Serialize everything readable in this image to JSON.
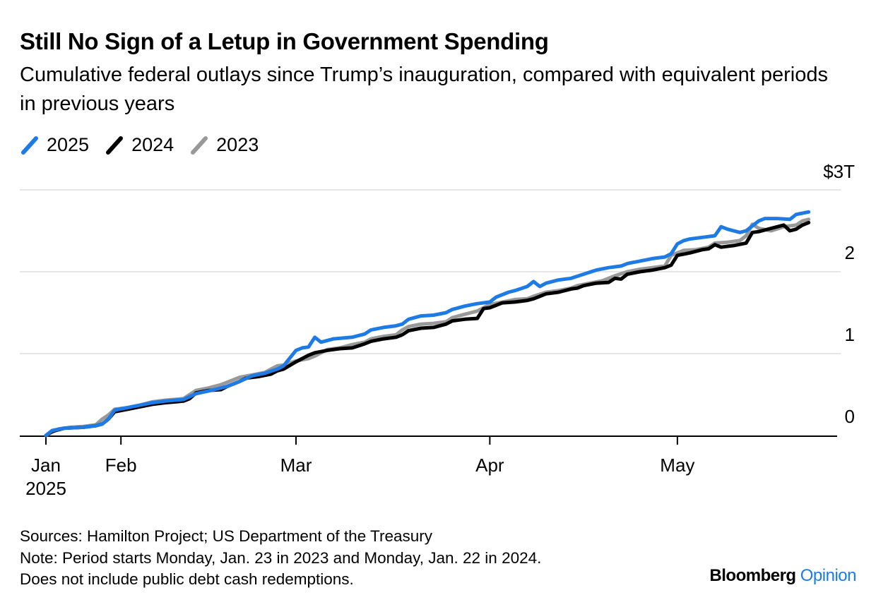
{
  "header": {
    "title": "Still No Sign of a Letup in Government Spending",
    "subtitle": "Cumulative federal outlays since Trump’s inauguration, compared with equivalent periods in previous years"
  },
  "chart_data": {
    "type": "line",
    "title": "Still No Sign of a Letup in Government Spending",
    "subtitle": "Cumulative federal outlays since Trump’s inauguration, compared with equivalent periods in previous years",
    "x_unit": "days since period start (Jan 20, 2025)",
    "xlim": [
      -1,
      126
    ],
    "ylim": [
      0,
      3
    ],
    "y_unit": "$ trillions",
    "y_ticks": [
      0,
      1,
      2,
      3
    ],
    "y_tick_labels": [
      "0",
      "1",
      "2",
      "$3T"
    ],
    "x_ticks": [
      {
        "day": 0,
        "label": "Jan",
        "sublabel": "2025"
      },
      {
        "day": 12,
        "label": "Feb",
        "sublabel": ""
      },
      {
        "day": 40,
        "label": "Mar",
        "sublabel": ""
      },
      {
        "day": 71,
        "label": "Apr",
        "sublabel": ""
      },
      {
        "day": 101,
        "label": "May",
        "sublabel": ""
      }
    ],
    "grid": true,
    "legend_position": "top-left",
    "series": [
      {
        "name": "2025",
        "color": "#1e7be6",
        "points": [
          [
            0,
            0
          ],
          [
            1,
            0.06
          ],
          [
            3,
            0.09
          ],
          [
            6,
            0.1
          ],
          [
            8,
            0.12
          ],
          [
            9,
            0.14
          ],
          [
            10,
            0.2
          ],
          [
            11,
            0.31
          ],
          [
            13,
            0.34
          ],
          [
            15,
            0.37
          ],
          [
            17,
            0.4
          ],
          [
            19,
            0.42
          ],
          [
            22,
            0.44
          ],
          [
            24,
            0.51
          ],
          [
            27,
            0.56
          ],
          [
            29,
            0.6
          ],
          [
            31,
            0.66
          ],
          [
            33,
            0.73
          ],
          [
            35,
            0.76
          ],
          [
            37,
            0.81
          ],
          [
            38,
            0.85
          ],
          [
            40,
            1.04
          ],
          [
            41,
            1.07
          ],
          [
            42,
            1.08
          ],
          [
            43,
            1.2
          ],
          [
            44,
            1.14
          ],
          [
            46,
            1.18
          ],
          [
            49,
            1.2
          ],
          [
            51,
            1.24
          ],
          [
            52,
            1.29
          ],
          [
            54,
            1.32
          ],
          [
            56,
            1.34
          ],
          [
            57,
            1.36
          ],
          [
            58,
            1.42
          ],
          [
            60,
            1.46
          ],
          [
            62,
            1.47
          ],
          [
            64,
            1.5
          ],
          [
            65,
            1.54
          ],
          [
            67,
            1.58
          ],
          [
            69,
            1.61
          ],
          [
            71,
            1.63
          ],
          [
            72,
            1.69
          ],
          [
            74,
            1.75
          ],
          [
            75,
            1.77
          ],
          [
            77,
            1.82
          ],
          [
            78,
            1.88
          ],
          [
            79,
            1.82
          ],
          [
            80,
            1.86
          ],
          [
            82,
            1.9
          ],
          [
            84,
            1.92
          ],
          [
            86,
            1.97
          ],
          [
            88,
            2.02
          ],
          [
            90,
            2.05
          ],
          [
            92,
            2.07
          ],
          [
            93,
            2.1
          ],
          [
            95,
            2.13
          ],
          [
            97,
            2.16
          ],
          [
            99,
            2.18
          ],
          [
            100,
            2.22
          ],
          [
            101,
            2.34
          ],
          [
            102,
            2.38
          ],
          [
            103,
            2.4
          ],
          [
            105,
            2.42
          ],
          [
            107,
            2.44
          ],
          [
            108,
            2.55
          ],
          [
            109,
            2.52
          ],
          [
            111,
            2.48
          ],
          [
            112,
            2.5
          ],
          [
            114,
            2.62
          ],
          [
            115,
            2.65
          ],
          [
            117,
            2.65
          ],
          [
            119,
            2.64
          ],
          [
            120,
            2.7
          ],
          [
            122,
            2.73
          ]
        ]
      },
      {
        "name": "2024",
        "color": "#000000",
        "points": [
          [
            0,
            0
          ],
          [
            1,
            0.05
          ],
          [
            3,
            0.09
          ],
          [
            6,
            0.1
          ],
          [
            8,
            0.12
          ],
          [
            9,
            0.14
          ],
          [
            10,
            0.2
          ],
          [
            11,
            0.29
          ],
          [
            13,
            0.32
          ],
          [
            15,
            0.35
          ],
          [
            17,
            0.38
          ],
          [
            19,
            0.4
          ],
          [
            22,
            0.42
          ],
          [
            23,
            0.45
          ],
          [
            24,
            0.52
          ],
          [
            26,
            0.55
          ],
          [
            28,
            0.56
          ],
          [
            29,
            0.6
          ],
          [
            31,
            0.66
          ],
          [
            32,
            0.7
          ],
          [
            34,
            0.72
          ],
          [
            36,
            0.75
          ],
          [
            37,
            0.79
          ],
          [
            38,
            0.81
          ],
          [
            40,
            0.9
          ],
          [
            42,
            0.98
          ],
          [
            43,
            1.01
          ],
          [
            45,
            1.04
          ],
          [
            47,
            1.06
          ],
          [
            49,
            1.07
          ],
          [
            51,
            1.12
          ],
          [
            52,
            1.15
          ],
          [
            54,
            1.18
          ],
          [
            56,
            1.2
          ],
          [
            57,
            1.23
          ],
          [
            58,
            1.28
          ],
          [
            60,
            1.31
          ],
          [
            62,
            1.32
          ],
          [
            64,
            1.36
          ],
          [
            65,
            1.4
          ],
          [
            67,
            1.42
          ],
          [
            69,
            1.43
          ],
          [
            70,
            1.55
          ],
          [
            71,
            1.56
          ],
          [
            73,
            1.62
          ],
          [
            75,
            1.63
          ],
          [
            77,
            1.65
          ],
          [
            78,
            1.67
          ],
          [
            80,
            1.73
          ],
          [
            82,
            1.75
          ],
          [
            84,
            1.79
          ],
          [
            85,
            1.8
          ],
          [
            86,
            1.83
          ],
          [
            88,
            1.86
          ],
          [
            90,
            1.87
          ],
          [
            91,
            1.92
          ],
          [
            92,
            1.91
          ],
          [
            93,
            1.97
          ],
          [
            95,
            2.0
          ],
          [
            97,
            2.02
          ],
          [
            99,
            2.05
          ],
          [
            100,
            2.08
          ],
          [
            101,
            2.2
          ],
          [
            103,
            2.23
          ],
          [
            105,
            2.27
          ],
          [
            106,
            2.28
          ],
          [
            107,
            2.33
          ],
          [
            108,
            2.3
          ],
          [
            110,
            2.32
          ],
          [
            112,
            2.35
          ],
          [
            113,
            2.48
          ],
          [
            114,
            2.49
          ],
          [
            116,
            2.53
          ],
          [
            118,
            2.57
          ],
          [
            119,
            2.5
          ],
          [
            120,
            2.52
          ],
          [
            121,
            2.57
          ],
          [
            122,
            2.6
          ]
        ]
      },
      {
        "name": "2023",
        "color": "#999999",
        "points": [
          [
            0,
            0
          ],
          [
            2,
            0.08
          ],
          [
            4,
            0.1
          ],
          [
            6,
            0.11
          ],
          [
            8,
            0.13
          ],
          [
            9,
            0.2
          ],
          [
            10,
            0.25
          ],
          [
            11,
            0.32
          ],
          [
            13,
            0.34
          ],
          [
            15,
            0.37
          ],
          [
            17,
            0.41
          ],
          [
            19,
            0.43
          ],
          [
            22,
            0.45
          ],
          [
            23,
            0.5
          ],
          [
            24,
            0.55
          ],
          [
            26,
            0.58
          ],
          [
            28,
            0.62
          ],
          [
            30,
            0.68
          ],
          [
            31,
            0.71
          ],
          [
            33,
            0.74
          ],
          [
            35,
            0.77
          ],
          [
            36,
            0.81
          ],
          [
            37,
            0.85
          ],
          [
            38,
            0.86
          ],
          [
            40,
            0.91
          ],
          [
            42,
            0.94
          ],
          [
            43,
            0.97
          ],
          [
            45,
            1.05
          ],
          [
            47,
            1.07
          ],
          [
            49,
            1.11
          ],
          [
            51,
            1.14
          ],
          [
            52,
            1.18
          ],
          [
            54,
            1.21
          ],
          [
            56,
            1.23
          ],
          [
            57,
            1.29
          ],
          [
            58,
            1.33
          ],
          [
            60,
            1.36
          ],
          [
            62,
            1.37
          ],
          [
            64,
            1.39
          ],
          [
            65,
            1.44
          ],
          [
            67,
            1.48
          ],
          [
            69,
            1.52
          ],
          [
            70,
            1.56
          ],
          [
            71,
            1.6
          ],
          [
            73,
            1.63
          ],
          [
            75,
            1.66
          ],
          [
            77,
            1.67
          ],
          [
            78,
            1.7
          ],
          [
            80,
            1.75
          ],
          [
            82,
            1.77
          ],
          [
            84,
            1.8
          ],
          [
            85,
            1.83
          ],
          [
            87,
            1.86
          ],
          [
            89,
            1.89
          ],
          [
            90,
            1.92
          ],
          [
            91,
            1.95
          ],
          [
            93,
            2.0
          ],
          [
            95,
            2.03
          ],
          [
            97,
            2.05
          ],
          [
            99,
            2.07
          ],
          [
            100,
            2.2
          ],
          [
            102,
            2.26
          ],
          [
            104,
            2.27
          ],
          [
            106,
            2.3
          ],
          [
            107,
            2.35
          ],
          [
            109,
            2.36
          ],
          [
            111,
            2.38
          ],
          [
            112,
            2.44
          ],
          [
            113,
            2.58
          ],
          [
            114,
            2.53
          ],
          [
            116,
            2.5
          ],
          [
            118,
            2.55
          ],
          [
            120,
            2.57
          ],
          [
            121,
            2.62
          ],
          [
            122,
            2.64
          ]
        ]
      }
    ]
  },
  "footer": {
    "source": "Sources: Hamilton Project; US Department of the Treasury",
    "note_line1": "Note: Period starts Monday, Jan. 23 in 2023 and Monday, Jan. 22 in 2024.",
    "note_line2": "Does not include public debt cash redemptions."
  },
  "brand": {
    "name": "Bloomberg",
    "section": "Opinion"
  }
}
